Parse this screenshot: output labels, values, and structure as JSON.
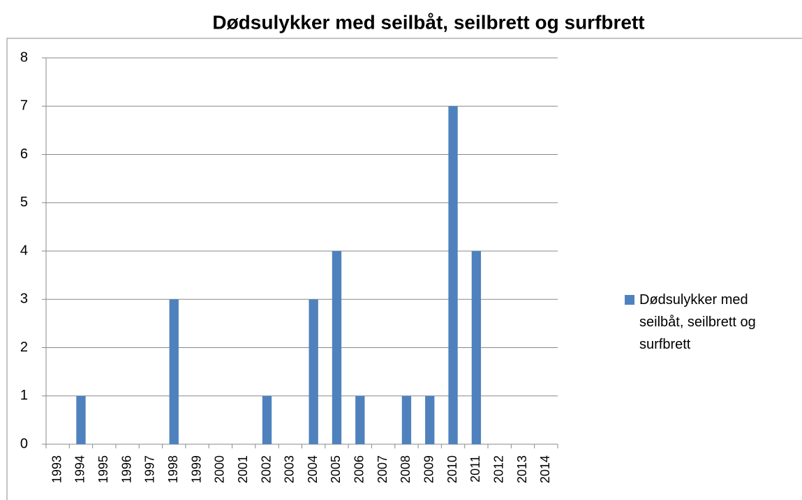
{
  "chart_data": {
    "type": "bar",
    "title": "Dødsulykker med seilbåt, seilbrett og surfbrett",
    "categories": [
      "1993",
      "1994",
      "1995",
      "1996",
      "1997",
      "1998",
      "1999",
      "2000",
      "2001",
      "2002",
      "2003",
      "2004",
      "2005",
      "2006",
      "2007",
      "2008",
      "2009",
      "2010",
      "2011",
      "2012",
      "2013",
      "2014"
    ],
    "series": [
      {
        "name": "Dødsulykker med seilbåt, seilbrett og surfbrett",
        "color": "#4f81bd",
        "values": [
          0,
          1,
          0,
          0,
          0,
          3,
          0,
          0,
          0,
          1,
          0,
          3,
          4,
          1,
          0,
          1,
          1,
          7,
          4,
          0,
          0,
          0
        ]
      }
    ],
    "ylim": [
      0,
      8
    ],
    "yticks": [
      0,
      1,
      2,
      3,
      4,
      5,
      6,
      7,
      8
    ],
    "grid": true,
    "legend": "right"
  }
}
